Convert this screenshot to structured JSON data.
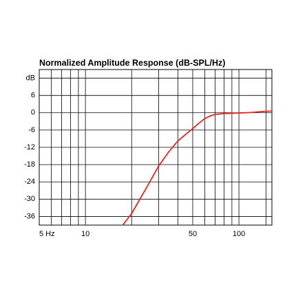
{
  "chart_data": {
    "type": "line",
    "title": "Normalized Amplitude Response (dB-SPL/Hz)",
    "x_scale": "log",
    "xlim": [
      5,
      164
    ],
    "ylim": [
      -39,
      15
    ],
    "xticks": [
      {
        "value": 5,
        "label": "5 Hz"
      },
      10,
      50,
      100
    ],
    "x_minor_grid": [
      6,
      7,
      8,
      9,
      20,
      30,
      40,
      60,
      70,
      80,
      90,
      150
    ],
    "yticks": [
      {
        "value": 12,
        "label": "dB"
      },
      6,
      0,
      -6,
      -12,
      -18,
      -24,
      -30,
      -36
    ],
    "grid": true,
    "series": [
      {
        "color": "#e8231f",
        "x": [
          17.5,
          20,
          25,
          30,
          35,
          40,
          45,
          50,
          55,
          60,
          65,
          70,
          80,
          100,
          120,
          140,
          164
        ],
        "values": [
          -39,
          -35,
          -26,
          -18.5,
          -13.5,
          -9.8,
          -7.5,
          -5.5,
          -3.6,
          -2,
          -1.1,
          -0.6,
          -0.3,
          -0.1,
          0.1,
          0.4,
          0.6
        ]
      }
    ]
  }
}
